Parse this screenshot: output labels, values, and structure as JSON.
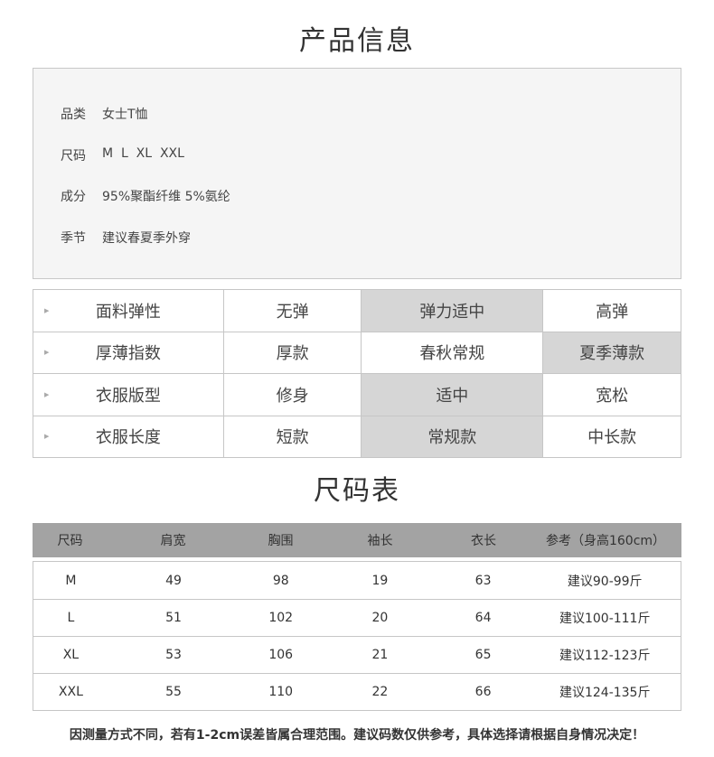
{
  "product_info": {
    "title": "产品信息",
    "rows": [
      {
        "label": "品类",
        "value": "女士T恤"
      },
      {
        "label": "尺码",
        "value": "M  L  XL  XXL"
      },
      {
        "label": "成分",
        "value": "95%聚酯纤维 5%氨纶"
      },
      {
        "label": "季节",
        "value": "建议春夏季外穿"
      }
    ]
  },
  "attributes": [
    {
      "label": "面料弹性",
      "options": [
        "无弹",
        "弹力适中",
        "高弹"
      ],
      "selected": 1
    },
    {
      "label": "厚薄指数",
      "options": [
        "厚款",
        "春秋常规",
        "夏季薄款"
      ],
      "selected": 2
    },
    {
      "label": "衣服版型",
      "options": [
        "修身",
        "适中",
        "宽松"
      ],
      "selected": 1
    },
    {
      "label": "衣服长度",
      "options": [
        "短款",
        "常规款",
        "中长款"
      ],
      "selected": 1
    }
  ],
  "size_chart": {
    "title": "尺码表",
    "headers": [
      "尺码",
      "肩宽",
      "胸围",
      "袖长",
      "衣长",
      "参考（身高160cm）"
    ],
    "rows": [
      [
        "M",
        "49",
        "98",
        "19",
        "63",
        "建议90-99斤"
      ],
      [
        "L",
        "51",
        "102",
        "20",
        "64",
        "建议100-111斤"
      ],
      [
        "XL",
        "53",
        "106",
        "21",
        "65",
        "建议112-123斤"
      ],
      [
        "XXL",
        "55",
        "110",
        "22",
        "66",
        "建议124-135斤"
      ]
    ]
  },
  "note": "因测量方式不同，若有1-2cm误差皆属合理范围。建议码数仅供参考，具体选择请根据自身情况决定！",
  "colors": {
    "highlight": "#d6d6d6",
    "header": "#a3a3a3",
    "info_bg": "#f5f5f5"
  }
}
